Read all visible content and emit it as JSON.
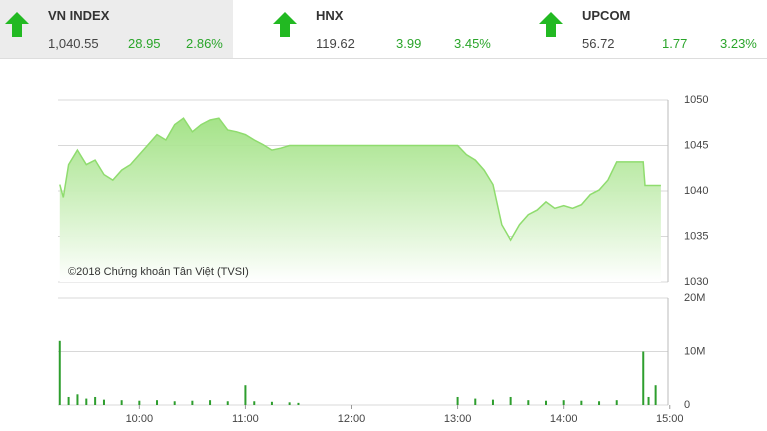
{
  "header": {
    "indices": [
      {
        "name": "VN INDEX",
        "value": "1,040.55",
        "change": "28.95",
        "percent": "2.86%"
      },
      {
        "name": "HNX",
        "value": "119.62",
        "change": "3.99",
        "percent": "3.45%"
      },
      {
        "name": "UPCOM",
        "value": "56.72",
        "change": "1.77",
        "percent": "3.23%"
      }
    ]
  },
  "chart_data": [
    {
      "type": "area",
      "annotation": "©2018 Chứng khoán Tân Việt (TVSI)",
      "color": "#8fdc6e",
      "x": [
        555,
        557,
        560,
        565,
        570,
        575,
        580,
        585,
        590,
        595,
        600,
        605,
        610,
        615,
        620,
        625,
        630,
        635,
        640,
        645,
        650,
        655,
        660,
        665,
        670,
        675,
        680,
        685,
        690,
        780,
        785,
        790,
        795,
        800,
        805,
        810,
        815,
        820,
        825,
        830,
        835,
        840,
        845,
        850,
        855,
        860,
        865,
        870,
        875,
        880,
        885,
        886,
        895
      ],
      "values": [
        1040.7,
        1039.3,
        1042.9,
        1044.5,
        1042.9,
        1043.4,
        1041.8,
        1041.2,
        1042.3,
        1042.9,
        1044.0,
        1045.1,
        1046.2,
        1045.6,
        1047.3,
        1048.0,
        1046.5,
        1047.3,
        1047.8,
        1048.0,
        1046.7,
        1046.5,
        1046.2,
        1045.6,
        1045.1,
        1044.5,
        1044.7,
        1045.0,
        1045.0,
        1045.0,
        1044.0,
        1043.4,
        1042.3,
        1040.7,
        1036.3,
        1034.6,
        1036.3,
        1037.4,
        1037.9,
        1038.8,
        1038.1,
        1038.4,
        1038.1,
        1038.5,
        1039.6,
        1040.1,
        1041.2,
        1043.2,
        1043.2,
        1043.2,
        1043.2,
        1040.6,
        1040.6
      ],
      "xlim": [
        554,
        899
      ],
      "ylim": [
        1030,
        1050
      ],
      "yticks": [
        1030,
        1035,
        1040,
        1045,
        1050
      ],
      "grid": true
    },
    {
      "type": "bar",
      "color": "#2e9e2e",
      "x": [
        555,
        560,
        565,
        570,
        575,
        580,
        590,
        600,
        610,
        620,
        630,
        640,
        650,
        660,
        665,
        675,
        685,
        690,
        780,
        790,
        800,
        810,
        820,
        830,
        840,
        850,
        860,
        870,
        885,
        888,
        892
      ],
      "values": [
        12000000,
        1500000,
        2000000,
        1200000,
        1500000,
        1000000,
        900000,
        800000,
        900000,
        700000,
        800000,
        900000,
        700000,
        3700000,
        700000,
        600000,
        500000,
        400000,
        1500000,
        1200000,
        1000000,
        1500000,
        900000,
        800000,
        900000,
        800000,
        700000,
        900000,
        10000000,
        1500000,
        3700000
      ],
      "xlim": [
        554,
        899
      ],
      "ylim": [
        0,
        20000000
      ],
      "yticks": [
        0,
        {
          "value": 10000000,
          "label": "10M"
        },
        {
          "value": 20000000,
          "label": "20M"
        }
      ],
      "xticks": [
        {
          "value": 600,
          "label": "10:00"
        },
        {
          "value": 660,
          "label": "11:00"
        },
        {
          "value": 720,
          "label": "12:00"
        },
        {
          "value": 780,
          "label": "13:00"
        },
        {
          "value": 840,
          "label": "14:00"
        },
        {
          "value": 900,
          "label": "15:00"
        }
      ],
      "grid": true
    }
  ]
}
